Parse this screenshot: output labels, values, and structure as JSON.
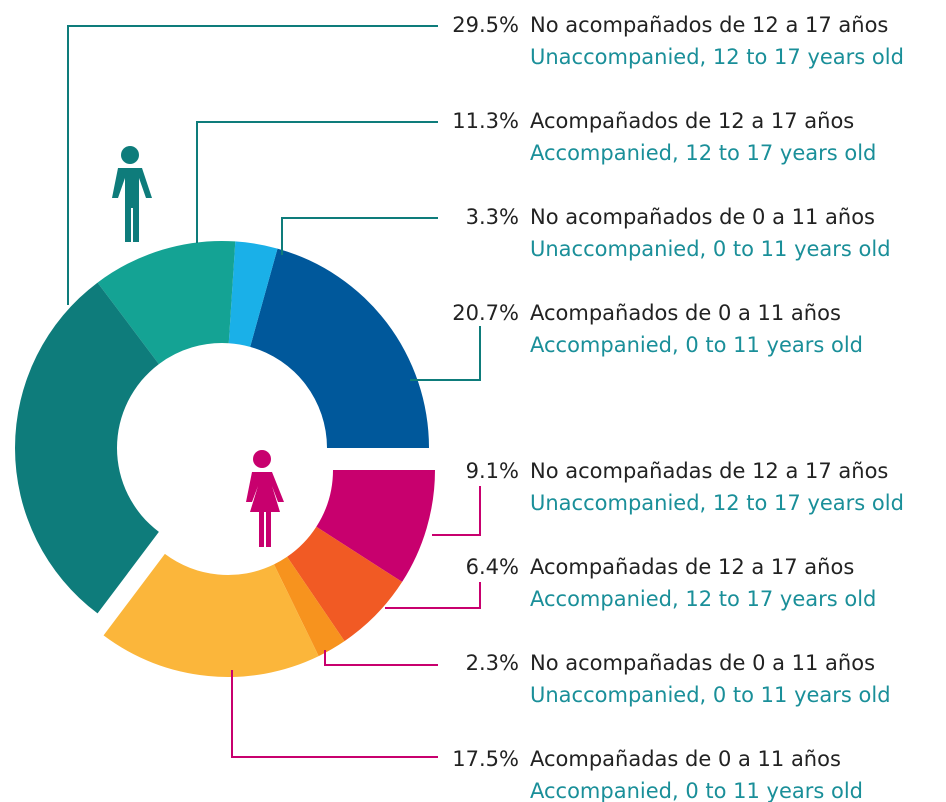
{
  "chart_data": {
    "type": "pie",
    "categories": [
      "No acompañados de 12 a 17 años",
      "Acompañados de 12 a 17 años",
      "No acompañados de 0 a 11 años",
      "Acompañados de 0 a 11 años",
      "No acompañadas de 12 a 17 años",
      "Acompañadas de 12 a 17 años",
      "No acompañadas de 0 a 11 años",
      "Acompañadas de 0 a 11 años"
    ],
    "categories_en": [
      "Unaccompanied, 12 to 17 years old",
      "Accompanied, 12 to 17 years old",
      "Unaccompanied, 0 to 11 years old",
      "Accompanied, 0 to 11 years old",
      "Unaccompanied, 12 to 17 years old",
      "Accompanied, 12 to 17 years old",
      "Unaccompanied, 0 to 11 years old",
      "Accompanied, 0 to 11 years old"
    ],
    "values": [
      29.5,
      11.3,
      3.3,
      20.7,
      9.1,
      6.4,
      2.3,
      17.5
    ],
    "value_labels": [
      "29.5%",
      "11.3%",
      "3.3%",
      "20.7%",
      "9.1%",
      "6.4%",
      "2.3%",
      "17.5%"
    ],
    "colors": [
      "#0e7c7b",
      "#14a394",
      "#1ab0e8",
      "#00589b",
      "#c8006e",
      "#f15a24",
      "#f7931e",
      "#fbb63b"
    ]
  }
}
